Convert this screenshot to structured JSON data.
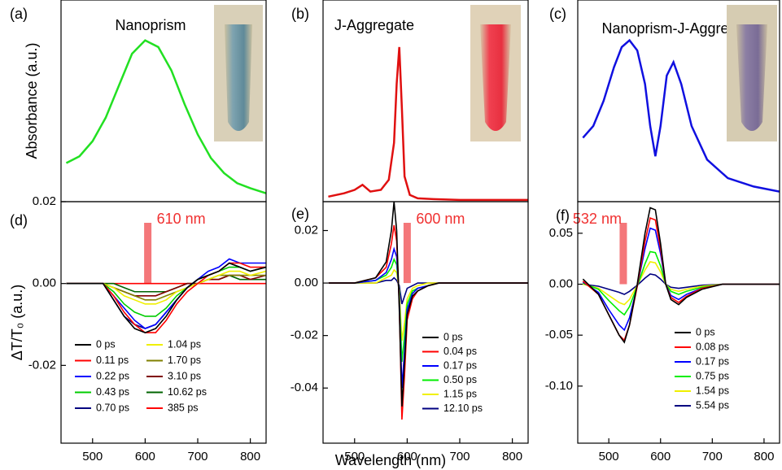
{
  "chart_data": [
    {
      "type": "line",
      "panel_label": "(a)",
      "title": "Nanoprism",
      "ylabel": "Absorbance (a.u.)",
      "xlim": [
        440,
        830
      ],
      "ylim": [
        0,
        1.2
      ],
      "color": "#22e022",
      "x": [
        450,
        475,
        500,
        525,
        550,
        575,
        600,
        625,
        650,
        675,
        700,
        725,
        750,
        775,
        800,
        830
      ],
      "values": [
        0.23,
        0.27,
        0.36,
        0.5,
        0.69,
        0.88,
        0.96,
        0.92,
        0.78,
        0.58,
        0.4,
        0.26,
        0.17,
        0.11,
        0.08,
        0.05
      ]
    },
    {
      "type": "line",
      "panel_label": "(b)",
      "title": "J-Aggregate",
      "xlim": [
        440,
        830
      ],
      "ylim": [
        0,
        1.2
      ],
      "color": "#e01010",
      "x": [
        450,
        480,
        500,
        515,
        530,
        550,
        565,
        575,
        580,
        585,
        590,
        595,
        605,
        620,
        650,
        700,
        750,
        830
      ],
      "values": [
        0.03,
        0.05,
        0.07,
        0.1,
        0.06,
        0.07,
        0.13,
        0.35,
        0.7,
        0.92,
        0.55,
        0.15,
        0.04,
        0.02,
        0.015,
        0.01,
        0.01,
        0.01
      ]
    },
    {
      "type": "line",
      "panel_label": "(c)",
      "title": "Nanoprism-J-Aggregate",
      "xlim": [
        440,
        830
      ],
      "ylim": [
        0,
        1.2
      ],
      "color": "#1010e0",
      "x": [
        450,
        470,
        490,
        510,
        525,
        540,
        555,
        570,
        580,
        590,
        600,
        612,
        625,
        640,
        660,
        690,
        730,
        780,
        830
      ],
      "values": [
        0.38,
        0.45,
        0.6,
        0.8,
        0.92,
        0.96,
        0.9,
        0.7,
        0.45,
        0.27,
        0.45,
        0.75,
        0.83,
        0.7,
        0.45,
        0.25,
        0.14,
        0.09,
        0.06
      ]
    },
    {
      "type": "line",
      "panel_label": "(d)",
      "ylabel": "ΔT/T₀ (a.u.)",
      "annotation": "610 nm",
      "pump_wavelength": 605,
      "xlim": [
        440,
        830
      ],
      "ylim": [
        -0.039,
        0.02
      ],
      "xticks": [
        500,
        600,
        700,
        800
      ],
      "yticks": [
        -0.02,
        {
          "value": 0,
          "label": "0.00"
        },
        0.02
      ],
      "x": [
        450,
        520,
        540,
        560,
        580,
        600,
        620,
        640,
        660,
        680,
        700,
        720,
        740,
        760,
        780,
        800,
        830
      ],
      "series": [
        {
          "name": "0 ps",
          "color": "#000000",
          "values": [
            0,
            0,
            -0.004,
            -0.008,
            -0.011,
            -0.012,
            -0.011,
            -0.008,
            -0.004,
            -0.001,
            0.001,
            0.002,
            0.003,
            0.005,
            0.004,
            0.003,
            0.004
          ]
        },
        {
          "name": "0.11 ps",
          "color": "#ff0000",
          "values": [
            0,
            0,
            -0.003,
            -0.007,
            -0.01,
            -0.012,
            -0.012,
            -0.009,
            -0.005,
            -0.002,
            0,
            0.002,
            0.003,
            0.005,
            0.005,
            0.004,
            0.004
          ]
        },
        {
          "name": "0.22 ps",
          "color": "#0000ff",
          "values": [
            0,
            0,
            -0.003,
            -0.006,
            -0.009,
            -0.011,
            -0.01,
            -0.007,
            -0.004,
            -0.001,
            0.001,
            0.003,
            0.004,
            0.006,
            0.005,
            0.005,
            0.005
          ]
        },
        {
          "name": "0.43 ps",
          "color": "#00cc00",
          "values": [
            0,
            0,
            -0.002,
            -0.005,
            -0.007,
            -0.008,
            -0.008,
            -0.006,
            -0.003,
            -0.001,
            0.001,
            0.002,
            0.003,
            0.004,
            0.004,
            0.003,
            0.004
          ]
        },
        {
          "name": "0.70 ps",
          "color": "#000080",
          "values": [
            0,
            0,
            -0.004,
            -0.008,
            -0.01,
            -0.011,
            -0.01,
            -0.007,
            -0.004,
            -0.001,
            0.001,
            0.002,
            0.003,
            0.005,
            0.004,
            0.003,
            0.004
          ]
        },
        {
          "name": "1.04 ps",
          "color": "#f0f000",
          "values": [
            0,
            0,
            -0.001,
            -0.003,
            -0.004,
            -0.005,
            -0.005,
            -0.004,
            -0.002,
            -0.001,
            0,
            0.001,
            0.002,
            0.003,
            0.003,
            0.002,
            0.003
          ]
        },
        {
          "name": "1.70 ps",
          "color": "#808000",
          "values": [
            0,
            0,
            -0.001,
            -0.002,
            -0.003,
            -0.004,
            -0.004,
            -0.003,
            -0.002,
            -0.001,
            0,
            0.001,
            0.002,
            0.002,
            0.002,
            0.002,
            0.002
          ]
        },
        {
          "name": "3.10 ps",
          "color": "#800000",
          "values": [
            0,
            0,
            -0.001,
            -0.002,
            -0.003,
            -0.003,
            -0.003,
            -0.002,
            -0.001,
            0,
            0,
            0.001,
            0.001,
            0.002,
            0.002,
            0.001,
            0.002
          ]
        },
        {
          "name": "10.62 ps",
          "color": "#006400",
          "values": [
            0,
            0,
            0,
            -0.001,
            -0.002,
            -0.002,
            -0.002,
            -0.002,
            -0.001,
            0,
            0,
            0.001,
            0.001,
            0.002,
            0.001,
            0.001,
            0.001
          ]
        },
        {
          "name": "385 ps",
          "color": "#ff0000",
          "values": [
            0,
            0,
            0,
            0,
            0,
            0,
            0,
            0,
            0,
            0,
            0,
            0,
            0,
            0,
            0,
            0,
            0
          ]
        }
      ]
    },
    {
      "type": "line",
      "panel_label": "(e)",
      "xlabel": "Wavelength (nm)",
      "annotation": "600 nm",
      "pump_wavelength": 600,
      "xlim": [
        440,
        830
      ],
      "ylim": [
        -0.061,
        0.031
      ],
      "xticks": [
        500,
        600,
        700,
        800
      ],
      "yticks": [
        -0.04,
        -0.02,
        {
          "value": 0,
          "label": "0.00"
        },
        0.02
      ],
      "x": [
        450,
        500,
        540,
        560,
        570,
        575,
        580,
        585,
        590,
        595,
        600,
        610,
        620,
        640,
        660,
        700,
        750,
        800,
        830
      ],
      "series": [
        {
          "name": "0 ps",
          "color": "#000000",
          "values": [
            0,
            0,
            0.002,
            0.008,
            0.02,
            0.031,
            0.02,
            -0.01,
            -0.047,
            -0.03,
            -0.012,
            -0.005,
            -0.003,
            -0.001,
            0,
            0,
            0,
            0,
            0
          ]
        },
        {
          "name": "0.04 ps",
          "color": "#ff0000",
          "values": [
            0,
            0,
            0.002,
            0.006,
            0.015,
            0.022,
            0.016,
            -0.008,
            -0.052,
            -0.035,
            -0.014,
            -0.006,
            -0.003,
            -0.001,
            0,
            0,
            0,
            0,
            0
          ]
        },
        {
          "name": "0.17 ps",
          "color": "#0000ff",
          "values": [
            0,
            0,
            0.001,
            0.004,
            0.009,
            0.013,
            0.01,
            -0.006,
            -0.04,
            -0.026,
            -0.01,
            -0.004,
            -0.002,
            -0.001,
            0,
            0,
            0,
            0,
            0
          ]
        },
        {
          "name": "0.50 ps",
          "color": "#00ee00",
          "values": [
            0,
            0,
            0.001,
            0.003,
            0.006,
            0.009,
            0.007,
            -0.004,
            -0.03,
            -0.02,
            -0.008,
            -0.003,
            -0.002,
            -0.001,
            0,
            0,
            0,
            0,
            0
          ]
        },
        {
          "name": "1.15 ps",
          "color": "#f0f000",
          "values": [
            0,
            0,
            0,
            0.002,
            0.003,
            0.005,
            0.004,
            -0.003,
            -0.022,
            -0.015,
            -0.006,
            -0.002,
            -0.001,
            0,
            0,
            0,
            0,
            0,
            0
          ]
        },
        {
          "name": "12.10 ps",
          "color": "#000080",
          "values": [
            0,
            0,
            0,
            0.001,
            0.001,
            0.002,
            0.001,
            -0.001,
            -0.008,
            -0.005,
            -0.002,
            -0.001,
            0,
            0,
            0,
            0,
            0,
            0,
            0
          ]
        }
      ]
    },
    {
      "type": "line",
      "panel_label": "(f)",
      "annotation": "532 nm",
      "pump_wavelength": 528,
      "xlim": [
        440,
        830
      ],
      "ylim": [
        -0.156,
        0.081
      ],
      "xticks": [
        500,
        600,
        700,
        800
      ],
      "yticks": [
        {
          "value": -0.1,
          "label": "-0.10"
        },
        -0.05,
        {
          "value": 0,
          "label": "0.00"
        },
        0.05
      ],
      "x": [
        450,
        480,
        500,
        520,
        530,
        540,
        555,
        570,
        580,
        590,
        600,
        610,
        620,
        635,
        650,
        680,
        720,
        780,
        830
      ],
      "series": [
        {
          "name": "0 ps",
          "color": "#000000",
          "values": [
            0.005,
            -0.01,
            -0.03,
            -0.05,
            -0.057,
            -0.04,
            0,
            0.05,
            0.075,
            0.073,
            0.04,
            0,
            -0.015,
            -0.02,
            -0.013,
            -0.005,
            0,
            0,
            0
          ]
        },
        {
          "name": "0.08 ps",
          "color": "#ff0000",
          "values": [
            0.003,
            -0.01,
            -0.03,
            -0.05,
            -0.055,
            -0.04,
            -0.002,
            0.042,
            0.065,
            0.063,
            0.035,
            0,
            -0.013,
            -0.018,
            -0.012,
            -0.004,
            0,
            0,
            0
          ]
        },
        {
          "name": "0.17 ps",
          "color": "#0000ff",
          "values": [
            0.002,
            -0.008,
            -0.025,
            -0.04,
            -0.045,
            -0.033,
            -0.002,
            0.035,
            0.055,
            0.053,
            0.03,
            0,
            -0.011,
            -0.015,
            -0.01,
            -0.004,
            0,
            0,
            0
          ]
        },
        {
          "name": "0.75 ps",
          "color": "#00ee00",
          "values": [
            0.001,
            -0.005,
            -0.016,
            -0.026,
            -0.03,
            -0.022,
            -0.002,
            0.02,
            0.032,
            0.031,
            0.018,
            0,
            -0.007,
            -0.01,
            -0.007,
            -0.003,
            0,
            0,
            0
          ]
        },
        {
          "name": "1.54 ps",
          "color": "#f0f000",
          "values": [
            0,
            -0.004,
            -0.011,
            -0.018,
            -0.02,
            -0.015,
            -0.001,
            0.014,
            0.022,
            0.021,
            0.012,
            0,
            -0.005,
            -0.007,
            -0.005,
            -0.002,
            0,
            0,
            0
          ]
        },
        {
          "name": "5.54 ps",
          "color": "#000080",
          "values": [
            0,
            -0.002,
            -0.005,
            -0.008,
            -0.01,
            -0.007,
            -0.001,
            0.006,
            0.01,
            0.009,
            0.005,
            0,
            -0.003,
            -0.004,
            -0.003,
            -0.001,
            0,
            0,
            0
          ]
        }
      ]
    }
  ]
}
